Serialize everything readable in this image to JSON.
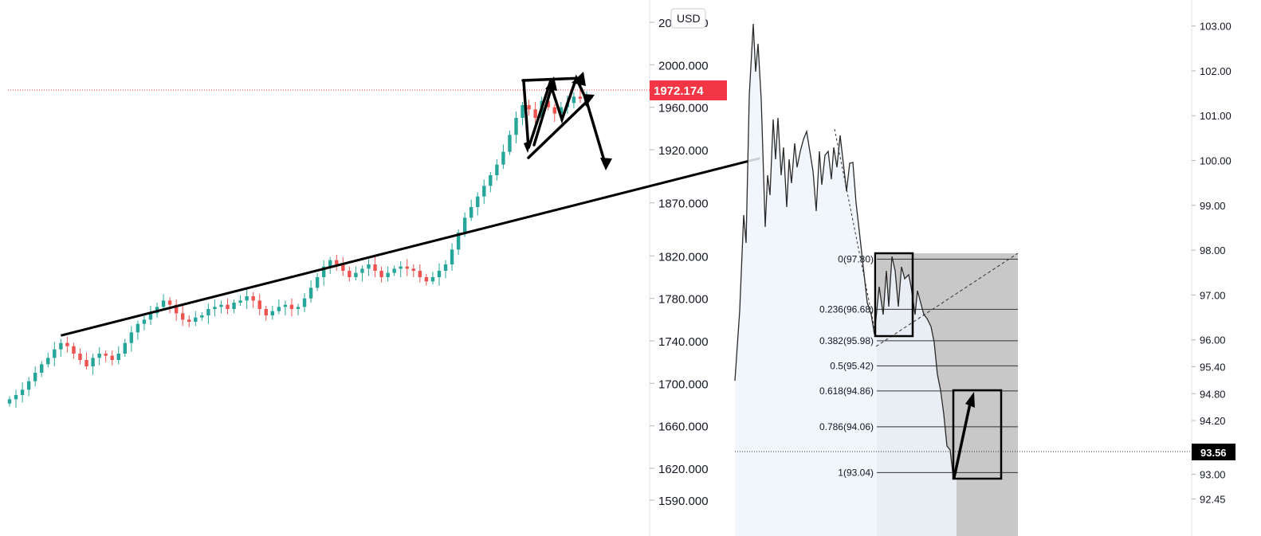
{
  "chart_data": [
    {
      "type": "candlestick",
      "panel": "left",
      "currency_label": "USD",
      "last_price_label": "1972.174",
      "last_price": 1972.174,
      "ylim": [
        1575,
        2040
      ],
      "y_ticks": [
        {
          "value": 2040,
          "label": "2040.000"
        },
        {
          "value": 2000,
          "label": "2000.000"
        },
        {
          "value": 1960,
          "label": "1960.000"
        },
        {
          "value": 1920,
          "label": "1920.000"
        },
        {
          "value": 1870,
          "label": "1870.000"
        },
        {
          "value": 1820,
          "label": "1820.000"
        },
        {
          "value": 1780,
          "label": "1780.000"
        },
        {
          "value": 1740,
          "label": "1740.000"
        },
        {
          "value": 1700,
          "label": "1700.000"
        },
        {
          "value": 1660,
          "label": "1660.000"
        },
        {
          "value": 1620,
          "label": "1620.000"
        },
        {
          "value": 1590,
          "label": "1590.000"
        }
      ],
      "closes_approx": [
        1685,
        1689,
        1694,
        1702,
        1710,
        1718,
        1724,
        1732,
        1738,
        1735,
        1728,
        1722,
        1716,
        1724,
        1728,
        1726,
        1722,
        1728,
        1738,
        1748,
        1756,
        1760,
        1766,
        1772,
        1778,
        1774,
        1766,
        1760,
        1758,
        1762,
        1764,
        1770,
        1772,
        1774,
        1770,
        1776,
        1778,
        1782,
        1778,
        1770,
        1764,
        1768,
        1772,
        1774,
        1770,
        1772,
        1780,
        1790,
        1800,
        1810,
        1816,
        1812,
        1806,
        1800,
        1804,
        1808,
        1812,
        1806,
        1800,
        1804,
        1808,
        1810,
        1808,
        1806,
        1800,
        1796,
        1800,
        1806,
        1812,
        1826,
        1842,
        1856,
        1866,
        1876,
        1886,
        1896,
        1906,
        1918,
        1934,
        1950,
        1962,
        1958,
        1950,
        1966,
        1960,
        1954,
        1960,
        1964,
        1970,
        1968,
        1972
      ],
      "trendline": {
        "start": {
          "index": 8,
          "value": 1745
        },
        "end": {
          "index": 117,
          "value": 1912
        }
      },
      "annotations": "black arrows drawn around the top forming a triangle, pointing down toward the trendline"
    },
    {
      "type": "area",
      "panel": "right",
      "last_price_label": "93.56",
      "last_price": 93.56,
      "ylim": [
        92.3,
        103.1
      ],
      "y_ticks": [
        {
          "value": 103.0,
          "label": "103.00"
        },
        {
          "value": 102.0,
          "label": "102.00"
        },
        {
          "value": 101.0,
          "label": "101.00"
        },
        {
          "value": 100.0,
          "label": "100.00"
        },
        {
          "value": 99.0,
          "label": "99.00"
        },
        {
          "value": 98.0,
          "label": "98.00"
        },
        {
          "value": 97.0,
          "label": "97.00"
        },
        {
          "value": 96.0,
          "label": "96.00"
        },
        {
          "value": 95.4,
          "label": "95.40"
        },
        {
          "value": 94.8,
          "label": "94.80"
        },
        {
          "value": 94.2,
          "label": "94.20"
        },
        {
          "value": 93.0,
          "label": "93.00"
        },
        {
          "value": 92.45,
          "label": "92.45"
        }
      ],
      "fibonacci": [
        {
          "level": 0,
          "value": 97.8,
          "label": "0(97.80)"
        },
        {
          "level": 0.236,
          "value": 96.68,
          "label": "0.236(96.68)"
        },
        {
          "level": 0.382,
          "value": 95.98,
          "label": "0.382(95.98)"
        },
        {
          "level": 0.5,
          "value": 95.42,
          "label": "0.5(95.42)"
        },
        {
          "level": 0.618,
          "value": 94.86,
          "label": "0.618(94.86)"
        },
        {
          "level": 0.786,
          "value": 94.06,
          "label": "0.786(94.06)"
        },
        {
          "level": 1,
          "value": 93.04,
          "label": "1(93.04)"
        }
      ]
    }
  ]
}
